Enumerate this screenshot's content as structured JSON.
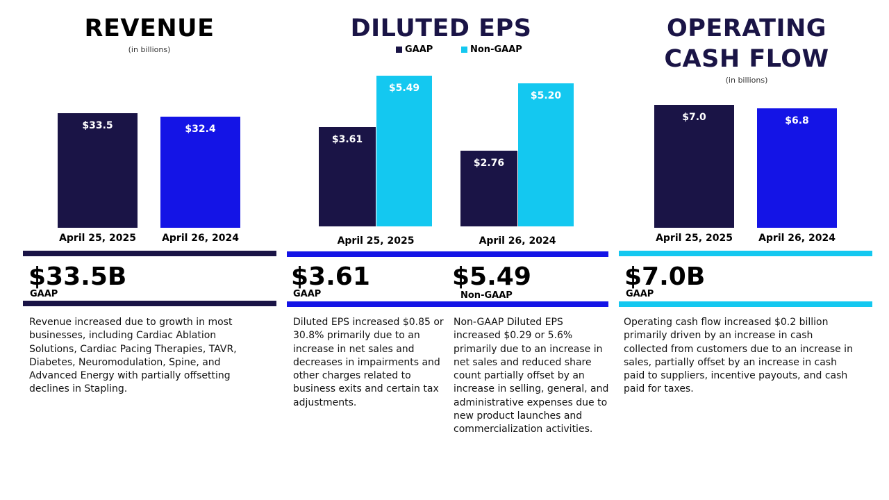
{
  "colors": {
    "navy": "#1a1446",
    "blue": "#1414e6",
    "cyan": "#14c8f0"
  },
  "chart_data": [
    {
      "type": "bar",
      "title": "REVENUE",
      "subtitle": "(in billions)",
      "categories": [
        "April 25, 2025",
        "April 26, 2024"
      ],
      "values": [
        33.5,
        32.4
      ],
      "labels": [
        "$33.5",
        "$32.4"
      ],
      "colors": [
        "#1a1446",
        "#1414e6"
      ]
    },
    {
      "type": "bar",
      "title": "DILUTED EPS",
      "categories": [
        "April 25, 2025",
        "April 26, 2024"
      ],
      "legend_position": "top",
      "series": [
        {
          "name": "GAAP",
          "values": [
            3.61,
            2.76
          ],
          "labels": [
            "$3.61",
            "$2.76"
          ],
          "color": "#1a1446"
        },
        {
          "name": "Non-GAAP",
          "values": [
            5.49,
            5.2
          ],
          "labels": [
            "$5.49",
            "$5.20"
          ],
          "color": "#14c8f0"
        }
      ]
    },
    {
      "type": "bar",
      "title": "OPERATING CASH FLOW",
      "subtitle": "(in billions)",
      "categories": [
        "April 25, 2025",
        "April 26, 2024"
      ],
      "values": [
        7.0,
        6.8
      ],
      "labels": [
        "$7.0",
        "$6.8"
      ],
      "colors": [
        "#1a1446",
        "#1414e6"
      ]
    }
  ],
  "revenue": {
    "title": "REVENUE",
    "subtitle": "(in billions)",
    "big": "$33.5B",
    "tag": "GAAP",
    "desc": "Revenue increased due to growth in most businesses, including Cardiac Ablation Solutions, Cardiac Pacing Therapies, TAVR, Diabetes, Neuromodulation, Spine, and Advanced Energy with partially offsetting declines in Stapling."
  },
  "eps": {
    "title": "DILUTED EPS",
    "gaap_big": "$3.61",
    "gaap_tag": "GAAP",
    "nongaap_big": "$5.49",
    "nongaap_tag": "Non-GAAP",
    "gaap_desc": "Diluted EPS increased $0.85 or 30.8% primarily due to an increase in net sales and decreases in impairments and other charges related to business exits and certain tax adjustments.",
    "nongaap_desc": "Non-GAAP Diluted EPS increased $0.29 or 5.6% primarily due to an increase in net sales and reduced share count partially offset by an increase in selling, general, and administrative expenses due to new product launches and commercialization activities."
  },
  "ocf": {
    "title_line1": "OPERATING",
    "title_line2": "CASH FLOW",
    "subtitle": "(in billions)",
    "big": "$7.0B",
    "tag": "GAAP",
    "desc": "Operating cash flow increased $0.2 billion primarily driven by an increase in cash collected from customers due to an increase in sales, partially offset by an increase in cash paid to suppliers, incentive payouts, and cash paid for taxes."
  }
}
